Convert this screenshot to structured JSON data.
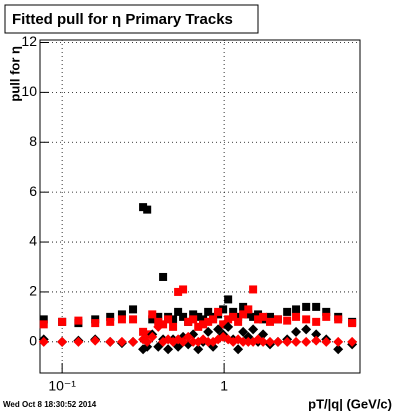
{
  "chart_data": {
    "type": "scatter",
    "title": "Fitted pull for  η  Primary Tracks",
    "y_label": "pull for η",
    "x_label": "pT/|q| (GeV/c)",
    "timestamp": "Wed Oct  8 18:30:52 2014",
    "log_x": true,
    "grid": true,
    "xlim": [
      0.073,
      6.9
    ],
    "ylim": [
      -1.25,
      12.1
    ],
    "xticks": [
      {
        "value": 0.1,
        "label": "10⁻¹"
      },
      1
    ],
    "yticks": [
      0,
      2,
      4,
      6,
      8,
      10,
      12
    ],
    "x": [
      0.077,
      0.1,
      0.126,
      0.16,
      0.198,
      0.234,
      0.274,
      0.316,
      0.335,
      0.36,
      0.392,
      0.42,
      0.451,
      0.484,
      0.52,
      0.558,
      0.6,
      0.644,
      0.692,
      0.742,
      0.797,
      0.855,
      0.918,
      0.986,
      1.059,
      1.137,
      1.22,
      1.31,
      1.41,
      1.51,
      1.62,
      1.74,
      1.92,
      2.15,
      2.45,
      2.78,
      3.21,
      3.7,
      4.27,
      5.06,
      6.17
    ],
    "series": [
      {
        "color": "#000000",
        "marker": "square",
        "values": [
          0.9,
          0.8,
          0.75,
          0.9,
          1.0,
          1.1,
          1.3,
          5.4,
          5.3,
          0.9,
          1.0,
          2.6,
          1.0,
          0.9,
          1.2,
          1.0,
          0.8,
          1.1,
          1.0,
          0.9,
          1.2,
          1.0,
          1.1,
          1.3,
          1.7,
          1.2,
          1.0,
          1.4,
          1.1,
          1.0,
          1.1,
          0.9,
          1.0,
          0.9,
          1.2,
          1.3,
          1.4,
          1.4,
          1.2,
          1.0,
          0.8
        ]
      },
      {
        "color": "#ff0000",
        "marker": "square",
        "values": [
          0.7,
          0.8,
          0.85,
          0.75,
          0.8,
          0.9,
          0.9,
          0.4,
          0.3,
          1.1,
          0.8,
          0.7,
          0.9,
          0.6,
          2.0,
          2.1,
          0.8,
          0.9,
          0.6,
          0.7,
          0.8,
          0.9,
          1.2,
          0.7,
          0.9,
          1.0,
          0.8,
          1.1,
          1.3,
          2.1,
          0.9,
          1.0,
          0.8,
          0.9,
          0.85,
          1.0,
          0.9,
          0.8,
          1.0,
          0.9,
          0.75
        ]
      },
      {
        "color": "#000000",
        "marker": "diamond",
        "values": [
          0.1,
          0,
          0.05,
          0.1,
          0,
          -0.05,
          0,
          -0.3,
          -0.2,
          0.3,
          -0.2,
          0.1,
          -0.3,
          0.1,
          -0.2,
          0.2,
          -0.1,
          0.3,
          -0.3,
          0,
          0.4,
          -0.2,
          0.5,
          0.3,
          0.6,
          0.1,
          -0.3,
          0.4,
          0.2,
          0.5,
          0,
          0.3,
          -0.1,
          0,
          0.1,
          0.4,
          0.5,
          0.3,
          0.1,
          -0.3,
          -0.1
        ]
      },
      {
        "color": "#ff0000",
        "marker": "diamond",
        "values": [
          0,
          0,
          0,
          0.05,
          0,
          0,
          0,
          0.1,
          0,
          0.2,
          0.6,
          0,
          0.1,
          0,
          0.1,
          0,
          0.2,
          0,
          0,
          0.1,
          0,
          0,
          0.1,
          0.2,
          0.1,
          0,
          0.1,
          0,
          0,
          0,
          0.1,
          0,
          0,
          0,
          0,
          0,
          0,
          0.05,
          0,
          0,
          0
        ]
      }
    ]
  }
}
